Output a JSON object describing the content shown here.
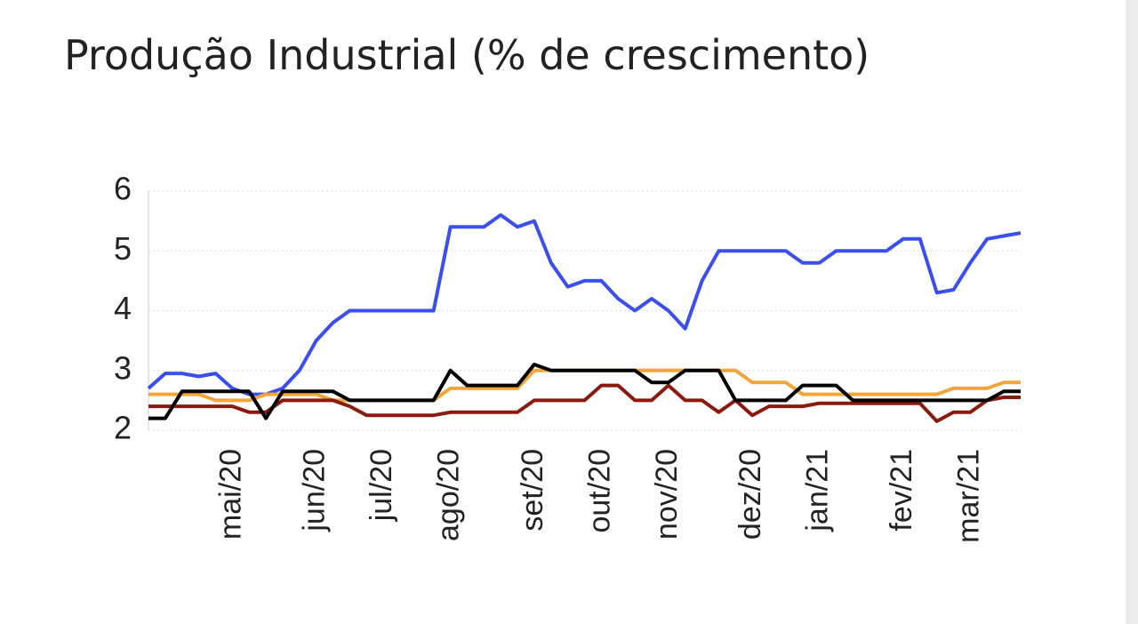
{
  "chart_data": {
    "type": "line",
    "title": "Produção Industrial (% de crescimento)",
    "categories": [
      null,
      null,
      null,
      null,
      null,
      "mai/20",
      null,
      null,
      null,
      null,
      "jun/20",
      null,
      null,
      null,
      "jul/20",
      null,
      null,
      null,
      "ago/20",
      null,
      null,
      null,
      null,
      "set/20",
      null,
      null,
      null,
      "out/20",
      null,
      null,
      null,
      "nov/20",
      null,
      null,
      null,
      null,
      "dez/20",
      null,
      null,
      null,
      "jan/21",
      null,
      null,
      null,
      null,
      "fev/21",
      null,
      null,
      null,
      "mar/21",
      null,
      null,
      null
    ],
    "series": [
      {
        "color": "#3b4ef0",
        "values": [
          2.7,
          2.95,
          2.95,
          2.9,
          2.95,
          2.7,
          2.6,
          2.6,
          2.7,
          3.0,
          3.5,
          3.8,
          4.0,
          4.0,
          4.0,
          4.0,
          4.0,
          4.0,
          5.4,
          5.4,
          5.4,
          5.6,
          5.4,
          5.5,
          4.8,
          4.4,
          4.5,
          4.5,
          4.2,
          4.0,
          4.2,
          4.0,
          3.7,
          4.5,
          5.0,
          5.0,
          5.0,
          5.0,
          5.0,
          4.8,
          4.8,
          5.0,
          5.0,
          5.0,
          5.0,
          5.2,
          5.2,
          4.3,
          4.35,
          4.8,
          5.2,
          5.25,
          5.3
        ]
      },
      {
        "color": "#f0a63a",
        "values": [
          2.6,
          2.6,
          2.6,
          2.6,
          2.5,
          2.5,
          2.5,
          2.6,
          2.6,
          2.6,
          2.6,
          2.5,
          2.5,
          2.5,
          2.5,
          2.5,
          2.5,
          2.5,
          2.7,
          2.7,
          2.7,
          2.7,
          2.7,
          3.0,
          3.0,
          3.0,
          3.0,
          3.0,
          3.0,
          3.0,
          3.0,
          3.0,
          3.0,
          3.0,
          3.0,
          3.0,
          2.8,
          2.8,
          2.8,
          2.6,
          2.6,
          2.6,
          2.6,
          2.6,
          2.6,
          2.6,
          2.6,
          2.6,
          2.7,
          2.7,
          2.7,
          2.8,
          2.8
        ]
      },
      {
        "color": "#8b1a0e",
        "values": [
          2.4,
          2.4,
          2.4,
          2.4,
          2.4,
          2.4,
          2.3,
          2.3,
          2.5,
          2.5,
          2.5,
          2.5,
          2.4,
          2.25,
          2.25,
          2.25,
          2.25,
          2.25,
          2.3,
          2.3,
          2.3,
          2.3,
          2.3,
          2.5,
          2.5,
          2.5,
          2.5,
          2.75,
          2.75,
          2.5,
          2.5,
          2.75,
          2.5,
          2.5,
          2.3,
          2.5,
          2.25,
          2.4,
          2.4,
          2.4,
          2.45,
          2.45,
          2.45,
          2.45,
          2.45,
          2.45,
          2.45,
          2.15,
          2.3,
          2.3,
          2.5,
          2.55,
          2.55
        ]
      },
      {
        "color": "#000000",
        "values": [
          2.2,
          2.2,
          2.65,
          2.65,
          2.65,
          2.65,
          2.65,
          2.2,
          2.65,
          2.65,
          2.65,
          2.65,
          2.5,
          2.5,
          2.5,
          2.5,
          2.5,
          2.5,
          3.0,
          2.75,
          2.75,
          2.75,
          2.75,
          3.1,
          3.0,
          3.0,
          3.0,
          3.0,
          3.0,
          3.0,
          2.8,
          2.8,
          3.0,
          3.0,
          3.0,
          2.5,
          2.5,
          2.5,
          2.5,
          2.75,
          2.75,
          2.75,
          2.5,
          2.5,
          2.5,
          2.5,
          2.5,
          2.5,
          2.5,
          2.5,
          2.5,
          2.65,
          2.65
        ]
      }
    ],
    "ylim": [
      2,
      6
    ],
    "yticks": [
      2,
      3,
      4,
      5,
      6
    ],
    "grid": true
  }
}
